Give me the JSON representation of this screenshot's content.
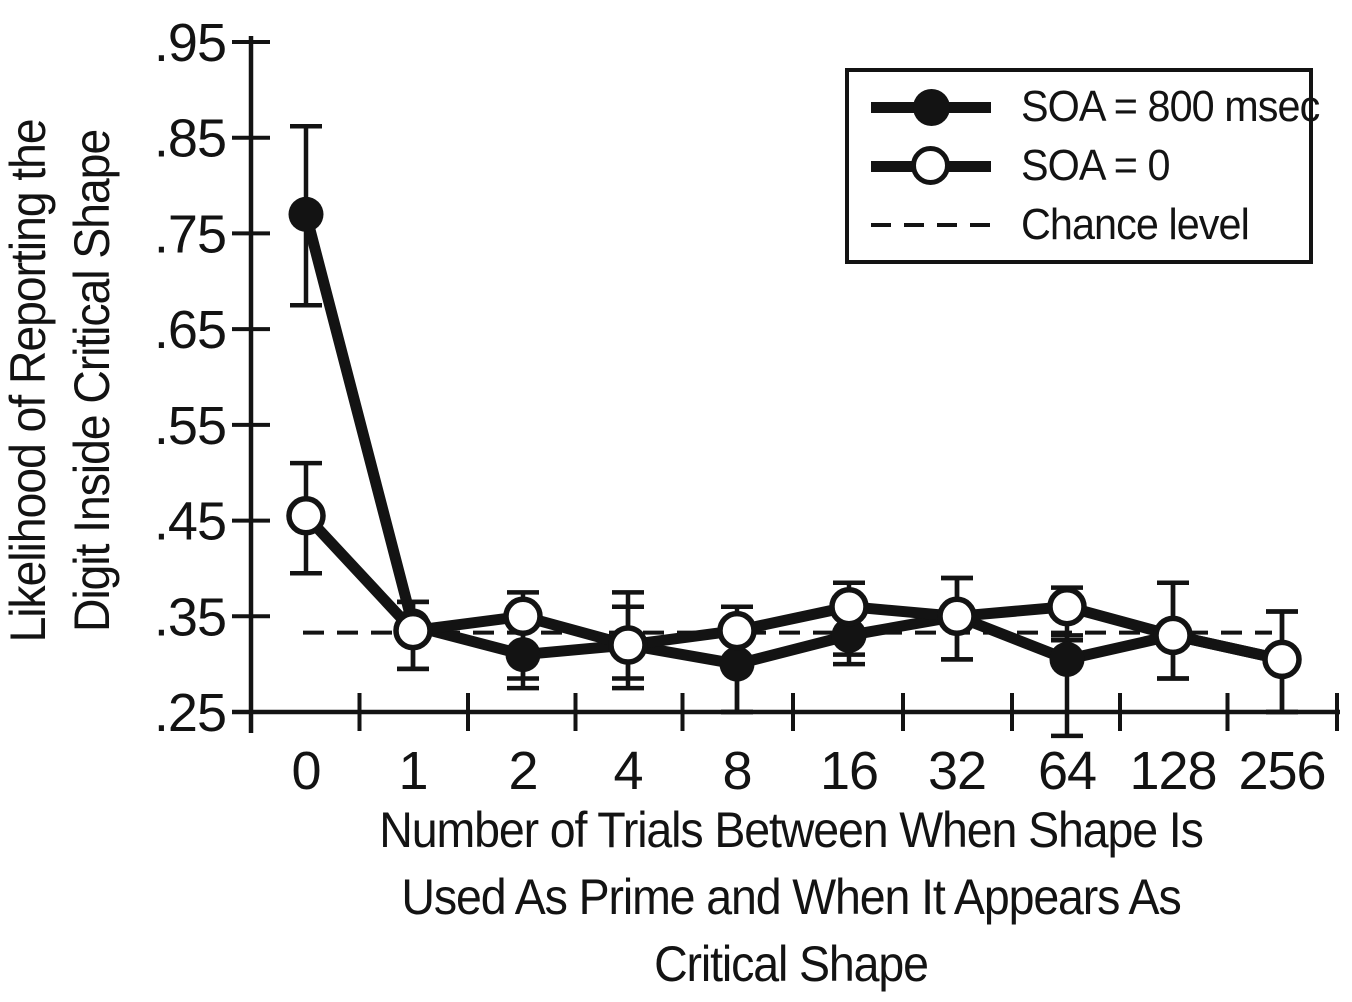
{
  "chart_data": {
    "type": "line",
    "title": "",
    "xlabel_lines": [
      "Number of Trials Between When Shape Is",
      "Used As Prime and When It Appears As",
      "Critical Shape"
    ],
    "ylabel_lines": [
      "Likelihood of Reporting the",
      "Digit Inside Critical Shape"
    ],
    "x_axis": {
      "tick_labels": [
        "0",
        "1",
        "2",
        "4",
        "8",
        "16",
        "32",
        "64",
        "128",
        "256"
      ],
      "values": [
        0,
        1,
        2,
        4,
        8,
        16,
        32,
        64,
        128,
        256
      ],
      "scale": "categorical"
    },
    "y_axis": {
      "tick_labels": [
        ".95",
        ".85",
        ".75",
        ".65",
        ".55",
        ".45",
        ".35",
        ".25"
      ],
      "tick_values": [
        0.95,
        0.85,
        0.75,
        0.65,
        0.55,
        0.45,
        0.35,
        0.25
      ],
      "range": [
        0.25,
        0.95
      ]
    },
    "series": [
      {
        "name": "SOA = 800 msec",
        "marker": "filled-circle",
        "color": "#131313",
        "values": [
          0.77,
          0.34,
          0.31,
          0.32,
          0.3,
          0.33,
          0.35,
          0.305,
          0.33,
          0.305
        ],
        "err_lo": [
          0.675,
          0.295,
          0.275,
          0.275,
          0.25,
          0.3,
          0.305,
          0.225,
          0.285,
          0.25
        ],
        "err_hi": [
          0.862,
          0.365,
          0.35,
          0.375,
          0.33,
          0.36,
          0.39,
          0.33,
          0.385,
          0.355
        ]
      },
      {
        "name": "SOA = 0",
        "marker": "open-circle",
        "color": "#131313",
        "values": [
          0.455,
          0.335,
          0.35,
          0.32,
          0.335,
          0.36,
          0.35,
          0.36,
          0.33,
          0.305
        ],
        "err_lo": [
          0.395,
          0.295,
          0.285,
          0.285,
          0.25,
          0.31,
          0.305,
          0.325,
          0.285,
          0.25
        ],
        "err_hi": [
          0.51,
          0.365,
          0.375,
          0.36,
          0.36,
          0.385,
          0.39,
          0.38,
          0.385,
          0.355
        ]
      }
    ],
    "chance_level": {
      "label": "Chance level",
      "value": 0.333,
      "line_style": "dashed"
    },
    "legend": {
      "position": "top-right",
      "entries": [
        "SOA = 800 msec",
        "SOA = 0",
        "Chance level"
      ]
    },
    "colors": {
      "ink": "#131313",
      "background": "#ffffff"
    },
    "grid": false
  }
}
